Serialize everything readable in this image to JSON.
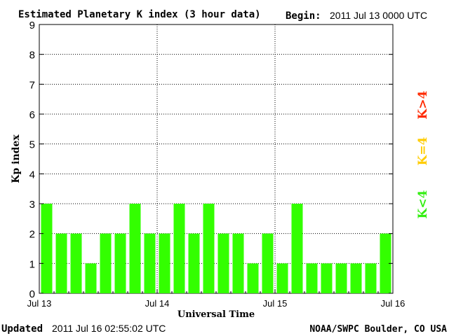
{
  "header": {
    "title": "Estimated Planetary K index (3 hour data)",
    "begin_label": "Begin:",
    "begin_value": "2011 Jul 13 0000 UTC"
  },
  "footer": {
    "updated_label": "Updated",
    "updated_value": "2011 Jul 16 02:55:02 UTC",
    "source": "NOAA/SWPC Boulder, CO USA"
  },
  "legend": {
    "above": {
      "label": "K>4",
      "color": "#ff2a00"
    },
    "equal": {
      "label": "K=4",
      "color": "#ffcc00"
    },
    "below": {
      "label": "K<4",
      "color": "#33ee11"
    }
  },
  "chart_data": {
    "type": "bar",
    "title": "Estimated Planetary K index (3 hour data)",
    "xlabel": "Universal Time",
    "ylabel": "Kp index",
    "ylim": [
      0,
      9
    ],
    "yticks": [
      "0",
      "1",
      "2",
      "3",
      "4",
      "5",
      "6",
      "7",
      "8",
      "9"
    ],
    "xticks": [
      "Jul 13",
      "Jul 14",
      "Jul 15",
      "Jul 16"
    ],
    "bar_color": "#33ff00",
    "values": [
      3,
      2,
      2,
      1,
      2,
      2,
      3,
      2,
      2,
      3,
      2,
      3,
      2,
      2,
      1,
      2,
      1,
      3,
      1,
      1,
      1,
      1,
      1,
      2
    ],
    "grid": "dotted"
  }
}
